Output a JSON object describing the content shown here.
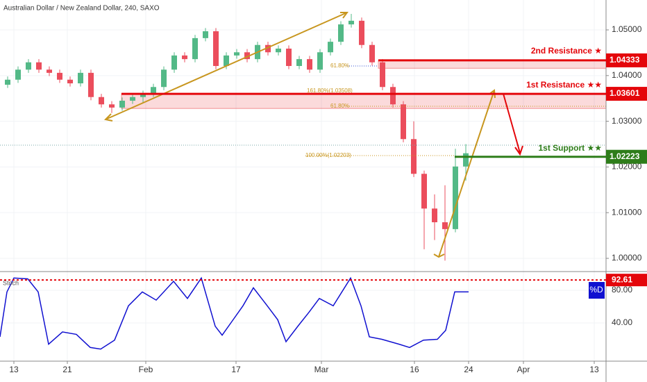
{
  "header": {
    "title": "Australian Dollar / New Zealand Dollar, 240, SAXO",
    "fib_labels": [
      "61.80%",
      "161.80%(1.03508)",
      "61.80%",
      "100.00%(1.02203)"
    ]
  },
  "chart_data": [
    {
      "type": "candlestick",
      "x": [
        1.1,
        2.6,
        4.1,
        5.6,
        7.1,
        8.6,
        10.1,
        11.6,
        13.1,
        14.6,
        16.1,
        17.6,
        19.1,
        20.6,
        22.1,
        23.6,
        25.1,
        26.6,
        28.1,
        29.6,
        31.1,
        32.6,
        34.1,
        35.6,
        37.1,
        38.6,
        40.1,
        41.6,
        43.1,
        44.6,
        46.1,
        47.6,
        49.1,
        50.6,
        52.1,
        53.6,
        55.1,
        56.6,
        58.1,
        59.6,
        61.1,
        62.6,
        64.1,
        65.6,
        67.1
      ],
      "open": [
        1.038,
        1.0391,
        1.0413,
        1.0429,
        1.0413,
        1.0406,
        1.0391,
        1.0383,
        1.0406,
        1.0353,
        1.0337,
        1.033,
        1.0345,
        1.0353,
        1.036,
        1.0375,
        1.0413,
        1.0444,
        1.0436,
        1.0482,
        1.0497,
        1.0421,
        1.0444,
        1.0451,
        1.0436,
        1.0467,
        1.0451,
        1.0459,
        1.0421,
        1.0436,
        1.0413,
        1.0451,
        1.0474,
        1.0512,
        1.052,
        1.0467,
        1.0429,
        1.0375,
        1.0337,
        1.0261,
        1.0185,
        1.0109,
        1.0079,
        1.0064,
        1.0201
      ],
      "high": [
        1.0398,
        1.042,
        1.0436,
        1.0436,
        1.042,
        1.0413,
        1.0398,
        1.0413,
        1.0413,
        1.036,
        1.0344,
        1.0352,
        1.036,
        1.0367,
        1.0382,
        1.042,
        1.0451,
        1.0451,
        1.0489,
        1.0504,
        1.0504,
        1.0451,
        1.0458,
        1.0458,
        1.0474,
        1.0474,
        1.0466,
        1.0466,
        1.0443,
        1.0443,
        1.0458,
        1.0481,
        1.0519,
        1.0535,
        1.0527,
        1.0474,
        1.0436,
        1.0382,
        1.0344,
        1.03,
        1.0192,
        1.014,
        1.016,
        1.024,
        1.025
      ],
      "low": [
        1.0373,
        1.0384,
        1.0406,
        1.0406,
        1.0399,
        1.0384,
        1.0376,
        1.0376,
        1.0346,
        1.033,
        1.0318,
        1.0323,
        1.0338,
        1.034,
        1.0353,
        1.0368,
        1.0406,
        1.0429,
        1.0429,
        1.0475,
        1.0414,
        1.0414,
        1.0437,
        1.0429,
        1.0429,
        1.0444,
        1.0444,
        1.0414,
        1.0414,
        1.0406,
        1.0406,
        1.0444,
        1.0467,
        1.0505,
        1.046,
        1.0422,
        1.0368,
        1.033,
        1.0254,
        1.0178,
        1.002,
        1.004,
        0.9995,
        1.0057,
        1.017
      ],
      "close": [
        1.0391,
        1.0413,
        1.0429,
        1.0413,
        1.0406,
        1.0391,
        1.0383,
        1.0406,
        1.0353,
        1.0337,
        1.033,
        1.0345,
        1.0353,
        1.036,
        1.0375,
        1.0413,
        1.0444,
        1.0436,
        1.0482,
        1.0497,
        1.0421,
        1.0444,
        1.0451,
        1.0436,
        1.0467,
        1.0451,
        1.0459,
        1.0421,
        1.0436,
        1.0413,
        1.0451,
        1.0474,
        1.0512,
        1.052,
        1.0467,
        1.0429,
        1.0375,
        1.0337,
        1.0261,
        1.0185,
        1.0109,
        1.0079,
        1.0064,
        1.0201,
        1.023
      ],
      "up_color": "#53b987",
      "down_color": "#eb4d5c",
      "xlim": [
        0,
        87.3
      ],
      "xticks": [
        {
          "value": 2.0,
          "label": "13"
        },
        {
          "value": 9.7,
          "label": "21"
        },
        {
          "value": 21.0,
          "label": "Feb"
        },
        {
          "value": 34.0,
          "label": "17"
        },
        {
          "value": 46.3,
          "label": "Mar"
        },
        {
          "value": 59.7,
          "label": "16"
        },
        {
          "value": 67.5,
          "label": "24"
        },
        {
          "value": 75.4,
          "label": "Apr"
        },
        {
          "value": 85.6,
          "label": "13"
        }
      ],
      "ylim": [
        0.99726,
        1.05654
      ],
      "yticks": [
        {
          "value": 1.05,
          "label": "1.05000"
        },
        {
          "value": 1.04,
          "label": "1.04000"
        },
        {
          "value": 1.03,
          "label": "1.03000"
        },
        {
          "value": 1.02,
          "label": "1.02000"
        },
        {
          "value": 1.01,
          "label": "1.01000"
        },
        {
          "value": 1.0,
          "label": "1.00000"
        }
      ],
      "levels": [
        {
          "name": "2nd Resistance ★",
          "value": 1.04333,
          "zone_low": 1.0416,
          "color": "#e4060b"
        },
        {
          "name": "1st Resistance ★★",
          "value": 1.03601,
          "zone_low": 1.0328,
          "color": "#e4060b"
        },
        {
          "name": "1st Support ★★",
          "value": 1.02223,
          "color": "#2e7d1a"
        }
      ]
    },
    {
      "type": "line",
      "title": "Stoch",
      "x": [
        0,
        1,
        2,
        4,
        5.5,
        7,
        9,
        11,
        13,
        14.5,
        16.5,
        18.5,
        20.5,
        22.5,
        25,
        27,
        29,
        31,
        32,
        33.5,
        35,
        36.5,
        38.5,
        40,
        41.2,
        43,
        44.5,
        46,
        48,
        50.5,
        52,
        53.2,
        55,
        57.5,
        59,
        61,
        63,
        64.2,
        65.5,
        67.5
      ],
      "series": [
        {
          "name": "%D",
          "color": "#1010d0",
          "values": [
            23,
            78,
            95,
            94,
            78,
            14,
            29,
            26,
            10,
            8,
            19,
            61,
            78,
            68,
            91,
            70,
            95,
            36,
            25,
            43,
            61,
            83,
            61,
            44,
            17,
            37,
            53,
            70,
            61,
            95,
            61,
            23,
            20,
            14,
            10,
            19,
            20,
            31,
            78,
            78
          ]
        }
      ],
      "ylim": [
        -6.8,
        102.1
      ],
      "yticks": [
        {
          "value": 80,
          "label": "80.00"
        },
        {
          "value": 40,
          "label": "40.00"
        }
      ],
      "level": {
        "value": 92.61,
        "color": "#e4060b"
      }
    }
  ]
}
